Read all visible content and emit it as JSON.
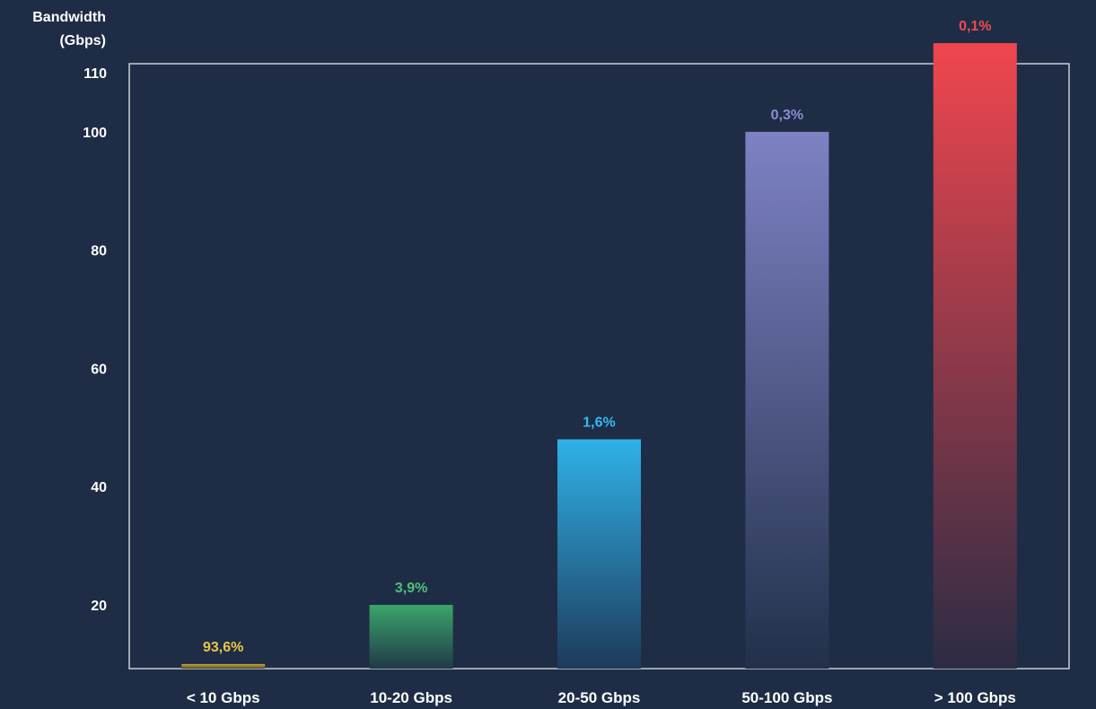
{
  "chart_data": {
    "type": "bar",
    "ylabel_line1": "Bandwidth",
    "ylabel_line2": "(Gbps)",
    "xlabel": "",
    "categories": [
      "< 10 Gbps",
      "10-20 Gbps",
      "20-50 Gbps",
      "50-100 Gbps",
      "> 100 Gbps"
    ],
    "values": [
      10,
      20,
      48,
      100,
      115
    ],
    "value_labels": [
      "93,6%",
      "3,9%",
      "1,6%",
      "0,3%",
      "0,1%"
    ],
    "y_ticks": [
      20,
      40,
      60,
      80,
      100,
      110
    ],
    "ylim": [
      8,
      115
    ],
    "grid": false,
    "legend": "none",
    "colors": [
      {
        "top": "#c9a93a",
        "bottom": "#4a4a2e",
        "label": "#e8c64a"
      },
      {
        "top": "#3aa56a",
        "bottom": "#203a48",
        "label": "#4fbf7a"
      },
      {
        "top": "#2fb2e8",
        "bottom": "#1e3a5a",
        "label": "#36b9f0"
      },
      {
        "top": "#7e82c4",
        "bottom": "#22304a",
        "label": "#8a8ed0"
      },
      {
        "top": "#f0464e",
        "bottom": "#2c2c44",
        "label": "#f04a52"
      }
    ]
  }
}
